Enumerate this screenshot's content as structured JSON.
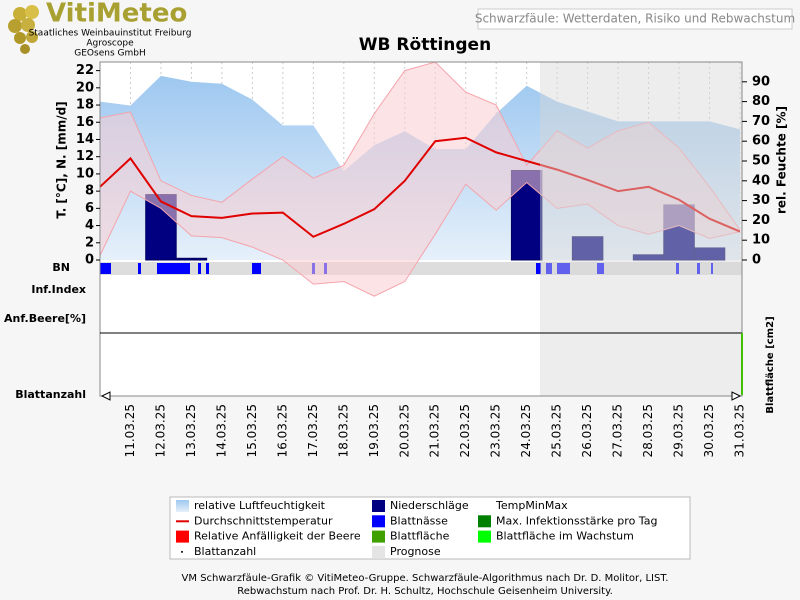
{
  "header": {
    "logo": "VitiMeteo",
    "org1": "Staatliches Weinbauinstitut Freiburg",
    "org2": "Agroscope",
    "org3": "GEOsens GmbH",
    "subtitle": "Schwarzfäule: Wetterdaten, Risiko und Rebwachstum"
  },
  "chart_data": {
    "type": "line",
    "title": "WB Röttingen",
    "ylabel": "T. [°C], N. [mm/d]",
    "y2label": "rel. Feuchte [%]",
    "y3label": "Blattfläche [cm2]",
    "row_labels": [
      "BN",
      "Inf.Index",
      "Anf.Beere[%]",
      "Blattanzahl"
    ],
    "categories": [
      null,
      "11.03.25",
      "12.03.25",
      "13.03.25",
      "14.03.25",
      "15.03.25",
      "16.03.25",
      "17.03.25",
      "18.03.25",
      "19.03.25",
      "20.03.25",
      "21.03.25",
      "22.03.25",
      "23.03.25",
      "24.03.25",
      "25.03.25",
      "26.03.25",
      "27.03.25",
      "28.03.25",
      "29.03.25",
      "30.03.25",
      "31.03.25"
    ],
    "ylim": [
      0,
      23
    ],
    "yticks": [
      0,
      2,
      4,
      6,
      8,
      10,
      12,
      14,
      16,
      18,
      20,
      22
    ],
    "y2lim": [
      0,
      100
    ],
    "y2ticks": [
      0,
      10,
      20,
      30,
      40,
      50,
      60,
      70,
      80,
      90
    ],
    "series": [
      {
        "name": "relative Luftfeuchtigkeit",
        "type": "area",
        "axis": "y2",
        "color": "#a8cdf0",
        "values": [
          80,
          78,
          93,
          90,
          89,
          81,
          68,
          68,
          45,
          58,
          65,
          56,
          56,
          74,
          88,
          80,
          75,
          70,
          70,
          70,
          70,
          66
        ]
      },
      {
        "name": "Niederschläge",
        "type": "bar",
        "color": "#000080",
        "values": [
          0,
          0,
          7.6,
          0.2,
          0,
          0,
          0,
          0,
          0,
          0,
          0,
          0,
          0,
          0,
          10.4,
          0,
          2.7,
          0,
          0.6,
          6.4,
          1.4,
          0
        ]
      },
      {
        "name": "TempMinMax",
        "type": "band",
        "color": "#f9cdd1",
        "line_color": "#f5a3ab",
        "values": [
          16.5,
          17.2,
          9.2,
          7.5,
          6.7,
          9.4,
          12.0,
          9.5,
          11.0,
          17.0,
          22.0,
          23.0,
          19.5,
          18.0,
          11.0,
          15.0,
          13.0,
          15.0,
          16.0,
          13.0,
          8.5,
          3.5
        ],
        "low": [
          0.5,
          8.0,
          6.0,
          2.8,
          2.6,
          1.5,
          0,
          -2.8,
          -2.5,
          -4.2,
          -2.5,
          3.0,
          8.8,
          5.8,
          9.0,
          6.0,
          6.5,
          4.0,
          3.0,
          4.0,
          2.5,
          3.3
        ]
      },
      {
        "name": "Durchschnittstemperatur",
        "type": "line",
        "color": "#e00000",
        "values": [
          8.5,
          11.8,
          6.8,
          5.1,
          4.9,
          5.4,
          5.5,
          2.7,
          4.2,
          5.9,
          9.2,
          13.8,
          14.2,
          12.5,
          11.5,
          10.5,
          9.3,
          8.0,
          8.5,
          7.0,
          4.8,
          3.3
        ]
      }
    ],
    "legend_extra": [
      {
        "name": "Blattnässe",
        "color": "#0000ff"
      },
      {
        "name": "Relative Anfälligkeit der Beere",
        "color": "#ff0000"
      },
      {
        "name": "Blattanzahl",
        "color": "#000000"
      },
      {
        "name": "Max. Infektionsstärke pro Tag",
        "color": "#008000"
      },
      {
        "name": "Blattfläche",
        "color": "#40a000"
      },
      {
        "name": "Blattfläche im Wachstum",
        "color": "#00ff00"
      },
      {
        "name": "Prognose",
        "color": "#e4e4e4"
      }
    ]
  },
  "footer": {
    "line1": "VM Schwarzfäule-Grafik © VitiMeteo-Gruppe. Schwarzfäule-Algorithmus nach Dr. D. Molitor, LIST.",
    "line2": "Rebwachstum nach Prof. Dr. H. Schultz, Hochschule Geisenheim University."
  }
}
